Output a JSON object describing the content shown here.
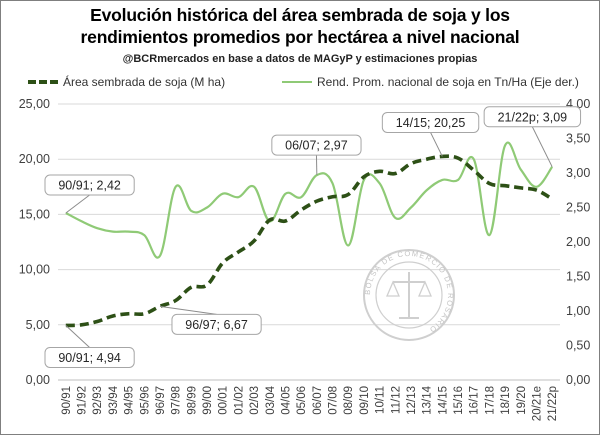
{
  "title_line1": "Evolución histórica del área sembrada de soja y los",
  "title_line2": "rendimientos promedios por hectárea a nivel nacional",
  "subtitle": "@BCRmercados en base a datos de MAGyP y estimaciones propias",
  "legend": {
    "area": "Área sembrada de soja (M ha)",
    "rend": "Rend. Prom. nacional de soja en Tn/Ha (Eje der.)"
  },
  "colors": {
    "area": "#2d5016",
    "rend": "#8fca76",
    "grid": "#d9d9d9",
    "axis_text": "#404040"
  },
  "watermark_text": "BOLSA DE COMERCIO DE ROSARIO",
  "chart_data": {
    "type": "line",
    "categories": [
      "90/91",
      "91/92",
      "92/93",
      "93/94",
      "94/95",
      "95/96",
      "96/97",
      "97/98",
      "98/99",
      "99/00",
      "00/01",
      "01/02",
      "02/03",
      "03/04",
      "04/05",
      "05/06",
      "06/07",
      "07/08",
      "08/09",
      "09/10",
      "10/11",
      "11/12",
      "12/13",
      "13/14",
      "14/15",
      "15/16",
      "16/17",
      "17/18",
      "18/19",
      "19/20",
      "20/21e",
      "21/22p"
    ],
    "y_left": {
      "min": 0,
      "max": 25,
      "ticks": [
        "0,00",
        "5,00",
        "10,00",
        "15,00",
        "20,00",
        "25,00"
      ]
    },
    "y_right": {
      "min": 0,
      "max": 4,
      "ticks": [
        "0,00",
        "0,50",
        "1,00",
        "1,50",
        "2,00",
        "2,50",
        "3,00",
        "3,50",
        "4,00"
      ]
    },
    "series": [
      {
        "name": "Área sembrada de soja (M ha)",
        "axis": "left",
        "style": "dashed",
        "values": [
          4.94,
          5.0,
          5.3,
          5.8,
          6.0,
          6.0,
          6.67,
          7.2,
          8.4,
          8.6,
          10.6,
          11.6,
          12.6,
          14.5,
          14.4,
          15.4,
          16.2,
          16.6,
          16.8,
          18.4,
          18.9,
          18.7,
          19.6,
          20.0,
          20.25,
          20.1,
          19.0,
          17.8,
          17.6,
          17.4,
          17.2,
          16.4
        ]
      },
      {
        "name": "Rend. Prom. nacional de soja en Tn/Ha (Eje der.)",
        "axis": "right",
        "style": "solid",
        "values": [
          2.42,
          2.3,
          2.2,
          2.15,
          2.15,
          2.1,
          1.8,
          2.8,
          2.45,
          2.5,
          2.7,
          2.65,
          2.8,
          2.3,
          2.7,
          2.65,
          2.97,
          2.85,
          1.95,
          2.9,
          2.85,
          2.35,
          2.5,
          2.75,
          2.9,
          2.9,
          3.2,
          2.1,
          3.4,
          3.05,
          2.8,
          3.09
        ]
      }
    ],
    "annotations": [
      {
        "text": "90/91; 2,42",
        "series": 1,
        "index": 0
      },
      {
        "text": "90/91; 4,94",
        "series": 0,
        "index": 0
      },
      {
        "text": "96/97; 6,67",
        "series": 0,
        "index": 6
      },
      {
        "text": "06/07; 2,97",
        "series": 1,
        "index": 16
      },
      {
        "text": "14/15; 20,25",
        "series": 0,
        "index": 24
      },
      {
        "text": "21/22p; 3,09",
        "series": 1,
        "index": 31
      }
    ]
  }
}
